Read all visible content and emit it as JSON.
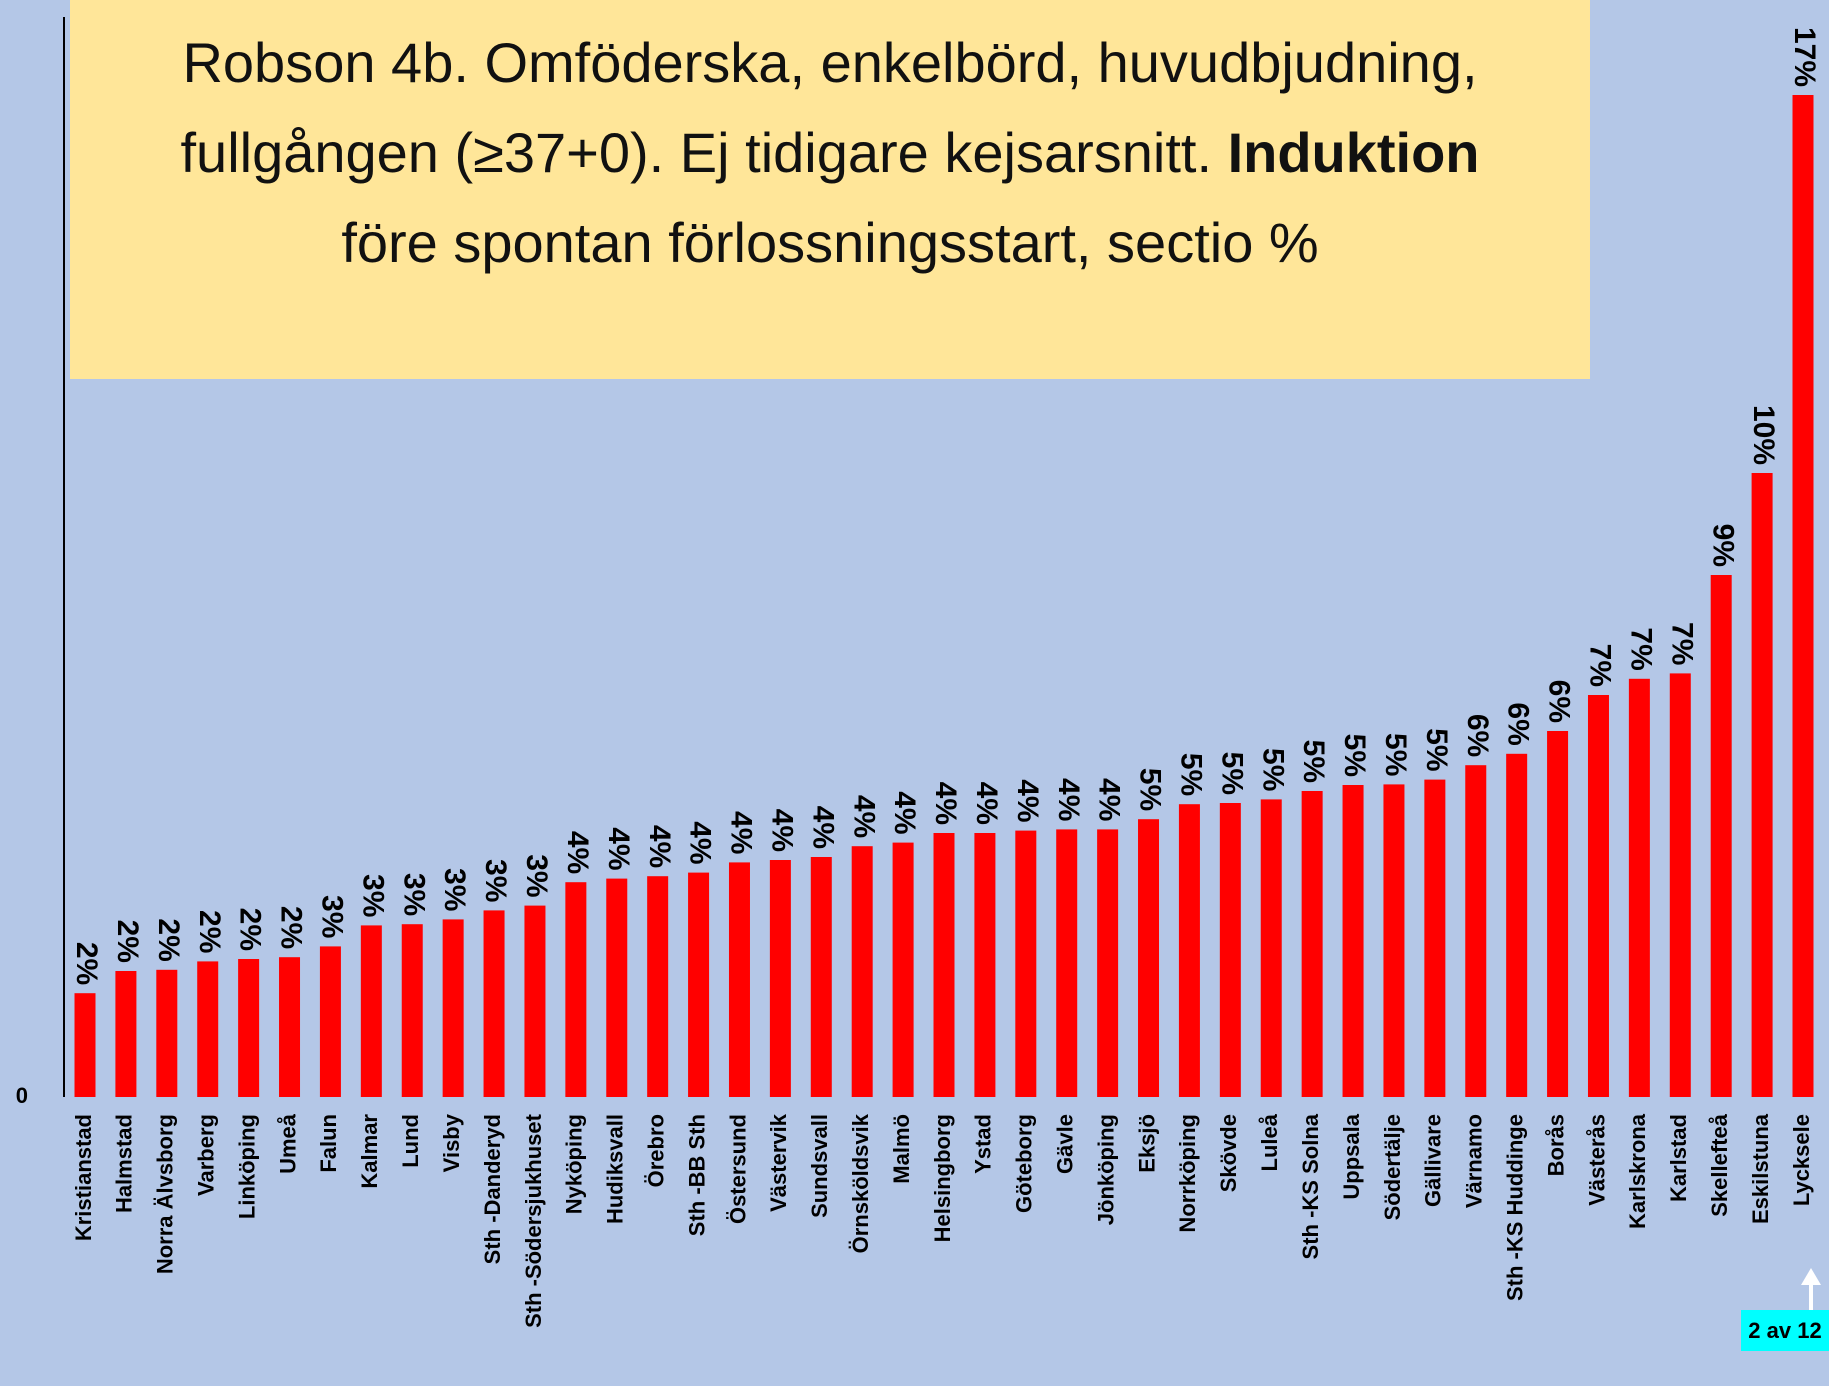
{
  "chart_data": {
    "type": "bar",
    "title_parts": [
      "Robson 4b. Omföderska, enkelbörd, huvudbjudning, fullgången (≥37+0). Ej tidigare kejsarsnitt. ",
      "Induktion",
      " före spontan förlossningsstart, sectio %"
    ],
    "categories": [
      "Kristianstad",
      "Halmstad",
      "Norra Älvsborg",
      "Varberg",
      "Linköping",
      "Umeå",
      "Falun",
      "Kalmar",
      "Lund",
      "Visby",
      "Sth -Danderyd",
      "Sth -Södersjukhuset",
      "Nyköping",
      "Hudiksvall",
      "Örebro",
      "Sth -BB Sth",
      "Östersund",
      "Västervik",
      "Sundsvall",
      "Örnsköldsvik",
      "Malmö",
      "Helsingborg",
      "Ystad",
      "Göteborg",
      "Gävle",
      "Jönköping",
      "Eksjö",
      "Norrköping",
      "Skövde",
      "Luleå",
      "Sth -KS Solna",
      "Uppsala",
      "Södertälje",
      "Gällivare",
      "Värnamo",
      "Sth -KS Huddinge",
      "Borås",
      "Västerås",
      "Karlskrona",
      "Karlstad",
      "Skellefteå",
      "Eskilstuna",
      "Lycksele"
    ],
    "values": [
      1.73,
      2.1,
      2.12,
      2.26,
      2.3,
      2.33,
      2.51,
      2.86,
      2.88,
      2.96,
      3.11,
      3.19,
      3.58,
      3.64,
      3.68,
      3.74,
      3.91,
      3.95,
      4.0,
      4.18,
      4.24,
      4.4,
      4.4,
      4.44,
      4.46,
      4.46,
      4.63,
      4.88,
      4.9,
      4.96,
      5.1,
      5.2,
      5.21,
      5.29,
      5.53,
      5.72,
      6.1,
      6.7,
      6.97,
      7.06,
      8.7,
      10.4,
      16.7
    ],
    "value_labels": [
      "2%",
      "2%",
      "2%",
      "2%",
      "2%",
      "2%",
      "3%",
      "3%",
      "3%",
      "3%",
      "3%",
      "3%",
      "4%",
      "4%",
      "4%",
      "4%",
      "4%",
      "4%",
      "4%",
      "4%",
      "4%",
      "4%",
      "4%",
      "4%",
      "4%",
      "4%",
      "5%",
      "5%",
      "5%",
      "5%",
      "5%",
      "5%",
      "5%",
      "5%",
      "6%",
      "6%",
      "6%",
      "7%",
      "7%",
      "7%",
      "9%",
      "10%",
      "17%"
    ],
    "color": "#ff0000",
    "ylim": [
      0,
      18
    ],
    "yticks": [
      0
    ],
    "grid": false,
    "annotation": "2 av 12"
  }
}
